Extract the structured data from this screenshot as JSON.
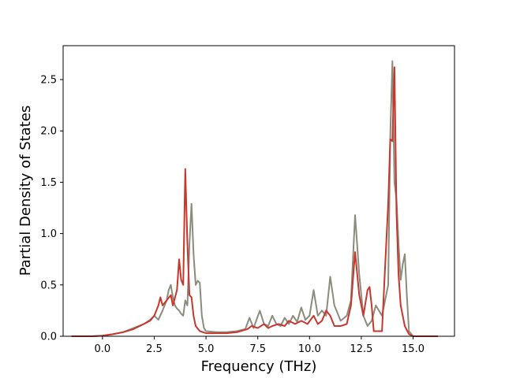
{
  "chart_data": {
    "type": "line",
    "title": "",
    "xlabel": "Frequency (THz)",
    "ylabel": "Partial Density of States",
    "xlim": [
      -1.9,
      17.0
    ],
    "ylim": [
      0.0,
      2.83
    ],
    "xticks": [
      0.0,
      2.5,
      5.0,
      7.5,
      10.0,
      12.5,
      15.0
    ],
    "xtick_labels": [
      "0.0",
      "2.5",
      "5.0",
      "7.5",
      "10.0",
      "12.5",
      "15.0"
    ],
    "yticks": [
      0.0,
      0.5,
      1.0,
      1.5,
      2.0,
      2.5
    ],
    "ytick_labels": [
      "0.0",
      "0.5",
      "1.0",
      "1.5",
      "2.0",
      "2.5"
    ],
    "grid": false,
    "legend": "none",
    "series": [
      {
        "color": "#8c8c7c",
        "points": [
          [
            -1.5,
            0.0
          ],
          [
            -0.5,
            0.0
          ],
          [
            0.0,
            0.005
          ],
          [
            0.5,
            0.02
          ],
          [
            1.0,
            0.04
          ],
          [
            1.5,
            0.08
          ],
          [
            2.0,
            0.12
          ],
          [
            2.3,
            0.16
          ],
          [
            2.5,
            0.2
          ],
          [
            2.7,
            0.16
          ],
          [
            2.9,
            0.25
          ],
          [
            3.1,
            0.35
          ],
          [
            3.2,
            0.45
          ],
          [
            3.3,
            0.5
          ],
          [
            3.4,
            0.38
          ],
          [
            3.5,
            0.3
          ],
          [
            3.6,
            0.27
          ],
          [
            3.7,
            0.25
          ],
          [
            3.8,
            0.22
          ],
          [
            3.9,
            0.2
          ],
          [
            4.0,
            0.35
          ],
          [
            4.1,
            0.3
          ],
          [
            4.2,
            0.9
          ],
          [
            4.3,
            1.29
          ],
          [
            4.4,
            0.8
          ],
          [
            4.5,
            0.5
          ],
          [
            4.6,
            0.54
          ],
          [
            4.7,
            0.52
          ],
          [
            4.8,
            0.2
          ],
          [
            4.9,
            0.08
          ],
          [
            5.0,
            0.05
          ],
          [
            5.5,
            0.04
          ],
          [
            6.0,
            0.04
          ],
          [
            6.5,
            0.05
          ],
          [
            6.9,
            0.07
          ],
          [
            7.1,
            0.18
          ],
          [
            7.3,
            0.08
          ],
          [
            7.6,
            0.25
          ],
          [
            7.8,
            0.12
          ],
          [
            8.0,
            0.1
          ],
          [
            8.2,
            0.2
          ],
          [
            8.4,
            0.12
          ],
          [
            8.6,
            0.1
          ],
          [
            8.8,
            0.18
          ],
          [
            9.0,
            0.12
          ],
          [
            9.2,
            0.2
          ],
          [
            9.4,
            0.14
          ],
          [
            9.6,
            0.28
          ],
          [
            9.8,
            0.16
          ],
          [
            10.0,
            0.2
          ],
          [
            10.2,
            0.45
          ],
          [
            10.4,
            0.2
          ],
          [
            10.6,
            0.25
          ],
          [
            10.8,
            0.2
          ],
          [
            11.0,
            0.58
          ],
          [
            11.2,
            0.3
          ],
          [
            11.5,
            0.15
          ],
          [
            11.8,
            0.2
          ],
          [
            12.0,
            0.35
          ],
          [
            12.2,
            1.18
          ],
          [
            12.4,
            0.6
          ],
          [
            12.6,
            0.2
          ],
          [
            12.8,
            0.1
          ],
          [
            13.0,
            0.15
          ],
          [
            13.2,
            0.3
          ],
          [
            13.5,
            0.2
          ],
          [
            13.8,
            0.5
          ],
          [
            13.9,
            1.95
          ],
          [
            14.0,
            2.68
          ],
          [
            14.1,
            1.5
          ],
          [
            14.2,
            1.33
          ],
          [
            14.3,
            0.9
          ],
          [
            14.4,
            0.55
          ],
          [
            14.5,
            0.7
          ],
          [
            14.6,
            0.8
          ],
          [
            14.7,
            0.4
          ],
          [
            14.8,
            0.05
          ],
          [
            15.0,
            0.0
          ],
          [
            16.2,
            0.0
          ]
        ]
      },
      {
        "color": "#c8372d",
        "points": [
          [
            -1.5,
            0.0
          ],
          [
            -0.5,
            0.0
          ],
          [
            0.0,
            0.005
          ],
          [
            0.5,
            0.02
          ],
          [
            1.0,
            0.04
          ],
          [
            1.5,
            0.07
          ],
          [
            2.0,
            0.12
          ],
          [
            2.3,
            0.15
          ],
          [
            2.5,
            0.2
          ],
          [
            2.7,
            0.3
          ],
          [
            2.8,
            0.38
          ],
          [
            2.9,
            0.3
          ],
          [
            3.1,
            0.35
          ],
          [
            3.3,
            0.4
          ],
          [
            3.4,
            0.3
          ],
          [
            3.6,
            0.45
          ],
          [
            3.7,
            0.75
          ],
          [
            3.8,
            0.55
          ],
          [
            3.9,
            0.5
          ],
          [
            4.0,
            1.63
          ],
          [
            4.1,
            0.9
          ],
          [
            4.2,
            0.4
          ],
          [
            4.3,
            0.38
          ],
          [
            4.4,
            0.2
          ],
          [
            4.5,
            0.1
          ],
          [
            4.7,
            0.05
          ],
          [
            5.0,
            0.03
          ],
          [
            5.5,
            0.03
          ],
          [
            6.0,
            0.03
          ],
          [
            6.5,
            0.04
          ],
          [
            7.0,
            0.07
          ],
          [
            7.2,
            0.1
          ],
          [
            7.5,
            0.08
          ],
          [
            7.8,
            0.12
          ],
          [
            8.0,
            0.08
          ],
          [
            8.2,
            0.1
          ],
          [
            8.5,
            0.12
          ],
          [
            8.8,
            0.1
          ],
          [
            9.0,
            0.15
          ],
          [
            9.3,
            0.12
          ],
          [
            9.6,
            0.15
          ],
          [
            9.9,
            0.12
          ],
          [
            10.2,
            0.2
          ],
          [
            10.4,
            0.12
          ],
          [
            10.6,
            0.15
          ],
          [
            10.8,
            0.25
          ],
          [
            11.0,
            0.2
          ],
          [
            11.2,
            0.1
          ],
          [
            11.5,
            0.1
          ],
          [
            11.8,
            0.12
          ],
          [
            12.0,
            0.3
          ],
          [
            12.2,
            0.82
          ],
          [
            12.4,
            0.4
          ],
          [
            12.6,
            0.2
          ],
          [
            12.8,
            0.45
          ],
          [
            12.9,
            0.48
          ],
          [
            13.0,
            0.3
          ],
          [
            13.1,
            0.05
          ],
          [
            13.5,
            0.05
          ],
          [
            13.8,
            1.3
          ],
          [
            13.9,
            1.92
          ],
          [
            14.0,
            1.9
          ],
          [
            14.1,
            2.62
          ],
          [
            14.2,
            1.2
          ],
          [
            14.3,
            0.6
          ],
          [
            14.4,
            0.3
          ],
          [
            14.5,
            0.2
          ],
          [
            14.6,
            0.1
          ],
          [
            14.8,
            0.02
          ],
          [
            15.0,
            0.0
          ],
          [
            16.2,
            0.0
          ]
        ]
      }
    ]
  }
}
